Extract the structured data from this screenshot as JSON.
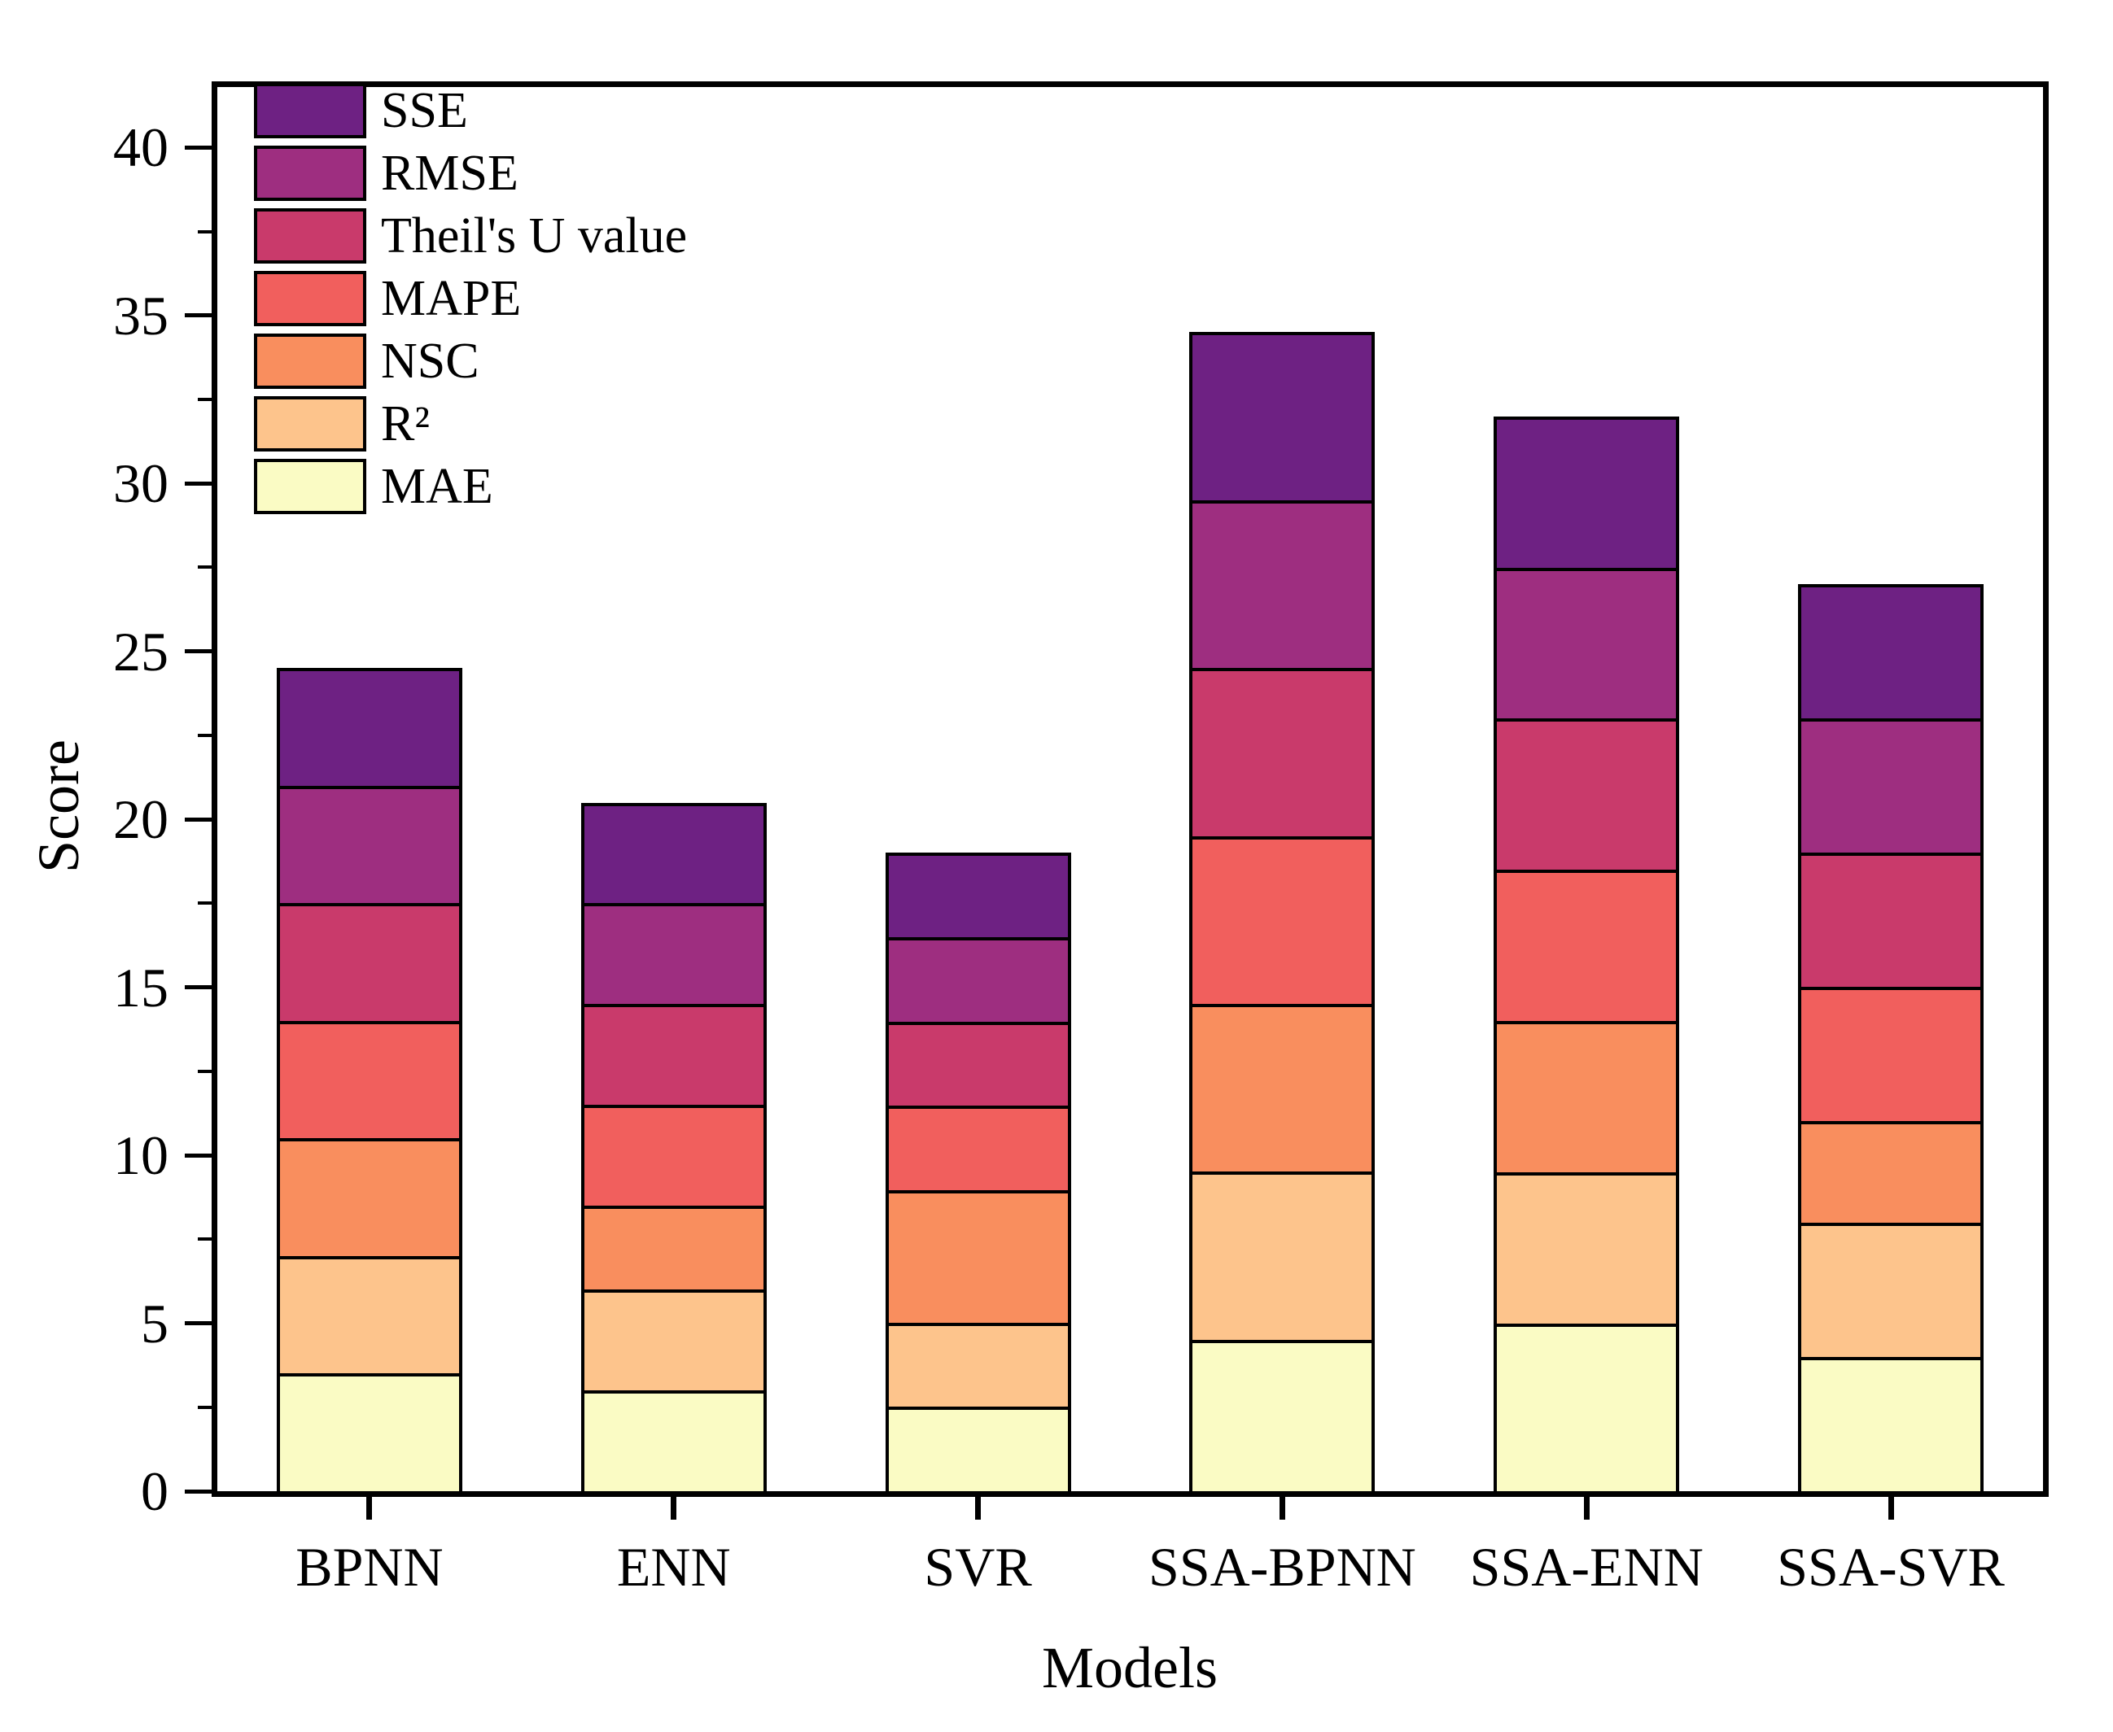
{
  "chart_data": {
    "type": "bar",
    "stacked": true,
    "xlabel": "Models",
    "ylabel": "Score",
    "categories": [
      "BPNN",
      "ENN",
      "SVR",
      "SSA-BPNN",
      "SSA-ENN",
      "SSA-SVR"
    ],
    "series": [
      {
        "name": "MAE",
        "color": "#FAFBC4",
        "values": [
          3.5,
          3.0,
          2.5,
          4.5,
          5.0,
          4.0
        ]
      },
      {
        "name": "R²",
        "color": "#FDC48C",
        "values": [
          3.5,
          3.0,
          2.5,
          5.0,
          4.5,
          4.0
        ]
      },
      {
        "name": "NSC",
        "color": "#F98E5E",
        "values": [
          3.5,
          2.5,
          4.0,
          5.0,
          4.5,
          3.0
        ]
      },
      {
        "name": "MAPE",
        "color": "#F15F5D",
        "values": [
          3.5,
          3.0,
          2.5,
          5.0,
          4.5,
          4.0
        ]
      },
      {
        "name": "Theil's U value",
        "color": "#C93A6B",
        "values": [
          3.5,
          3.0,
          2.5,
          5.0,
          4.5,
          4.0
        ]
      },
      {
        "name": "RMSE",
        "color": "#9E2E80",
        "values": [
          3.5,
          3.0,
          2.5,
          5.0,
          4.5,
          4.0
        ]
      },
      {
        "name": "SSE",
        "color": "#6E2183",
        "values": [
          3.5,
          3.0,
          2.5,
          5.0,
          4.5,
          4.0
        ]
      }
    ],
    "totals": [
      24.5,
      20.5,
      19.0,
      34.5,
      32.0,
      27.0
    ],
    "ylim": [
      0,
      41.8
    ],
    "yticks_major": [
      0,
      5,
      10,
      15,
      20,
      25,
      30,
      35,
      40
    ],
    "ytick_minor_step": 2.5,
    "legend": [
      "SSE",
      "RMSE",
      "Theil's U value",
      "MAPE",
      "NSC",
      "R²",
      "MAE"
    ],
    "legend_position": "top-left-inside",
    "grid": false,
    "bar_border_color": "#000000"
  }
}
